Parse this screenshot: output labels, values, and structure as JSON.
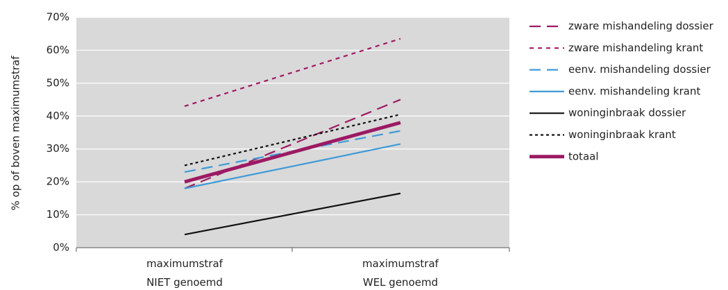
{
  "chart_data": {
    "type": "line",
    "title": "",
    "ylabel": "% op of boven maximumstraf",
    "xlabel": "",
    "ylim": [
      0,
      70
    ],
    "y_ticks": [
      "0%",
      "10%",
      "20%",
      "30%",
      "40%",
      "50%",
      "60%",
      "70%"
    ],
    "y_tick_values": [
      0,
      10,
      20,
      30,
      40,
      50,
      60,
      70
    ],
    "categories": [
      {
        "line1": "maximumstraf",
        "line2": "NIET genoemd"
      },
      {
        "line1": "maximumstraf",
        "line2": "WEL genoemd"
      }
    ],
    "grid": true,
    "legend_position": "right",
    "plot_background": "#d9d9d9",
    "series": [
      {
        "name": "zware mishandeling dossier",
        "values": [
          18,
          45
        ],
        "color": "#9c1a63",
        "style": "longdash",
        "weight": "normal"
      },
      {
        "name": "zware mishandeling krant",
        "values": [
          43,
          63.5
        ],
        "color": "#9c1a63",
        "style": "shortdash",
        "weight": "normal"
      },
      {
        "name": "eenv. mishandeling dossier",
        "values": [
          23,
          35.5
        ],
        "color": "#3e9ad8",
        "style": "longdash",
        "weight": "normal"
      },
      {
        "name": "eenv. mishandeling krant",
        "values": [
          18,
          31.5
        ],
        "color": "#3e9ad8",
        "style": "solid",
        "weight": "normal"
      },
      {
        "name": "woninginbraak dossier",
        "values": [
          4,
          16.5
        ],
        "color": "#111111",
        "style": "solid",
        "weight": "normal"
      },
      {
        "name": "woninginbraak krant",
        "values": [
          25,
          40.5
        ],
        "color": "#111111",
        "style": "dot",
        "weight": "normal"
      },
      {
        "name": "totaal",
        "values": [
          20,
          38
        ],
        "color": "#9c1a63",
        "style": "solid",
        "weight": "bold"
      }
    ]
  }
}
